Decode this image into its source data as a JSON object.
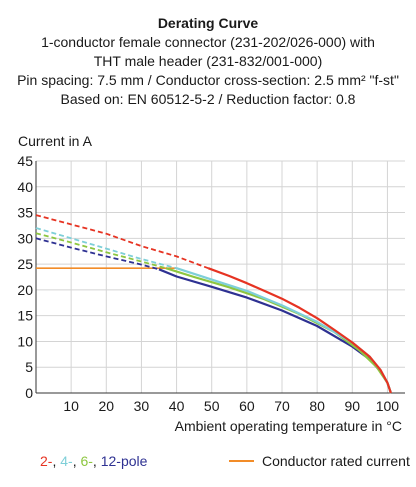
{
  "chart_data": {
    "type": "line",
    "title": "Derating Curve",
    "subtitle_lines": [
      "1-conductor female connector (231-202/026-000) with",
      "THT male header (231-832/001-000)",
      "Pin spacing: 7.5 mm / Conductor cross-section: 2.5 mm² \"f-st\"",
      "Based on: EN 60512-5-2 / Reduction factor: 0.8"
    ],
    "ylabel": "Current in A",
    "xlabel": "Ambient operating temperature in °C",
    "xlim": [
      0,
      105
    ],
    "ylim": [
      0,
      45
    ],
    "x_ticks": [
      "10",
      "20",
      "30",
      "40",
      "50",
      "60",
      "70",
      "80",
      "90",
      "100"
    ],
    "y_ticks": [
      "0",
      "5",
      "10",
      "15",
      "20",
      "25",
      "30",
      "35",
      "40",
      "45"
    ],
    "grid": true,
    "series": [
      {
        "name": "2-",
        "color": "#e63322",
        "dashed": [
          [
            0,
            34.5
          ],
          [
            10,
            32.7
          ],
          [
            20,
            30.9
          ],
          [
            30,
            28.5
          ],
          [
            40,
            26.5
          ],
          [
            49,
            24.2
          ]
        ],
        "solid": [
          [
            49,
            24.2
          ],
          [
            55,
            22.7
          ],
          [
            60,
            21.3
          ],
          [
            65,
            19.8
          ],
          [
            70,
            18.3
          ],
          [
            75,
            16.5
          ],
          [
            80,
            14.5
          ],
          [
            85,
            12.2
          ],
          [
            90,
            9.8
          ],
          [
            95,
            7.0
          ],
          [
            98,
            4.5
          ],
          [
            100,
            2.0
          ],
          [
            101,
            0
          ]
        ]
      },
      {
        "name": "4-",
        "color": "#7ecfd8",
        "dashed": [
          [
            0,
            32.0
          ],
          [
            10,
            30.0
          ],
          [
            20,
            28.0
          ],
          [
            30,
            26.0
          ],
          [
            40,
            24.2
          ]
        ],
        "solid": [
          [
            40,
            24.2
          ],
          [
            50,
            22.0
          ],
          [
            60,
            19.8
          ],
          [
            70,
            17.0
          ],
          [
            80,
            13.8
          ],
          [
            90,
            9.8
          ],
          [
            95,
            7.0
          ],
          [
            98,
            4.5
          ],
          [
            100,
            2.0
          ],
          [
            101,
            0
          ]
        ]
      },
      {
        "name": "6-",
        "color": "#8dc63f",
        "dashed": [
          [
            0,
            31.0
          ],
          [
            10,
            29.2
          ],
          [
            20,
            27.3
          ],
          [
            30,
            25.5
          ],
          [
            37,
            24.2
          ]
        ],
        "solid": [
          [
            37,
            24.2
          ],
          [
            45,
            22.5
          ],
          [
            55,
            20.5
          ],
          [
            65,
            18.2
          ],
          [
            75,
            15.3
          ],
          [
            85,
            11.8
          ],
          [
            92,
            8.3
          ],
          [
            97,
            5.0
          ],
          [
            100,
            2.0
          ],
          [
            101,
            0
          ]
        ]
      },
      {
        "name": "12-pole",
        "color": "#2e3192",
        "dashed": [
          [
            0,
            30.0
          ],
          [
            10,
            28.2
          ],
          [
            20,
            26.5
          ],
          [
            30,
            24.9
          ],
          [
            35,
            24.0
          ]
        ],
        "solid": [
          [
            35,
            24.0
          ],
          [
            40,
            22.6
          ],
          [
            50,
            20.6
          ],
          [
            60,
            18.5
          ],
          [
            70,
            16.0
          ],
          [
            80,
            13.0
          ],
          [
            90,
            9.0
          ],
          [
            95,
            6.5
          ],
          [
            98,
            4.2
          ],
          [
            100,
            2.0
          ],
          [
            101,
            0
          ]
        ]
      }
    ],
    "rated_current": {
      "name": "Conductor rated current",
      "color": "#f28c28",
      "value": 24.2,
      "x_range": [
        0,
        40
      ]
    },
    "legend": {
      "series_prefix_parts": [
        {
          "text": "2-",
          "color": "#e63322"
        },
        {
          "text": ", ",
          "color": "#1a1a1a"
        },
        {
          "text": "4-",
          "color": "#7ecfd8"
        },
        {
          "text": ", ",
          "color": "#1a1a1a"
        },
        {
          "text": "6-",
          "color": "#8dc63f"
        },
        {
          "text": ", ",
          "color": "#1a1a1a"
        },
        {
          "text": "12-pole",
          "color": "#2e3192"
        }
      ],
      "rated_label": "Conductor rated current"
    }
  }
}
